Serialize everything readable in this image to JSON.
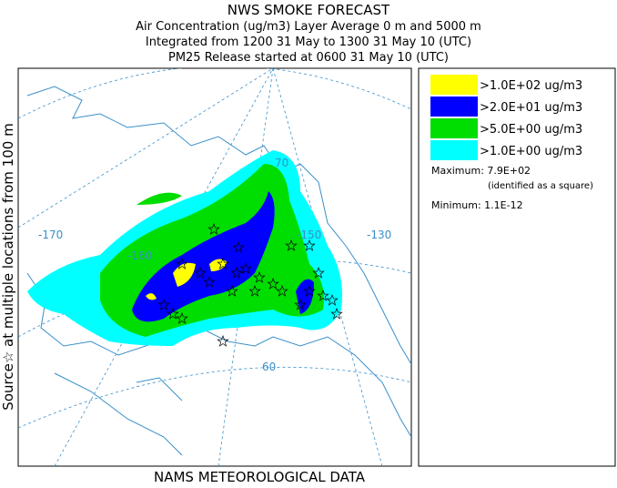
{
  "header": {
    "title": "NWS SMOKE FORECAST",
    "lines": [
      "Air Concentration (ug/m3) Layer Average    0 m and  5000 m",
      "Integrated from 1200 31 May to 1300 31 May 10 (UTC)",
      "PM25 Release started at 0600 31 May 10 (UTC)"
    ]
  },
  "side_label": "Source☆  at multiple locations    from   100 m",
  "footer": "NAMS METEOROLOGICAL DATA",
  "map": {
    "grid_labels": [
      "70",
      "-170",
      "-160",
      "-150",
      "-130",
      "60"
    ]
  },
  "legend": {
    "items": [
      {
        "label": ">1.0E+02 ug/m3",
        "color": "#ffff00"
      },
      {
        "label": ">2.0E+01 ug/m3",
        "color": "#0000ff"
      },
      {
        "label": ">5.0E+00 ug/m3",
        "color": "#00dd00"
      },
      {
        "label": ">1.0E+00 ug/m3",
        "color": "#00ffff"
      }
    ],
    "maximum": "Maximum: 7.9E+02",
    "maximum_note": "(identified as a square)",
    "minimum": "Minimum: 1.1E-12"
  }
}
